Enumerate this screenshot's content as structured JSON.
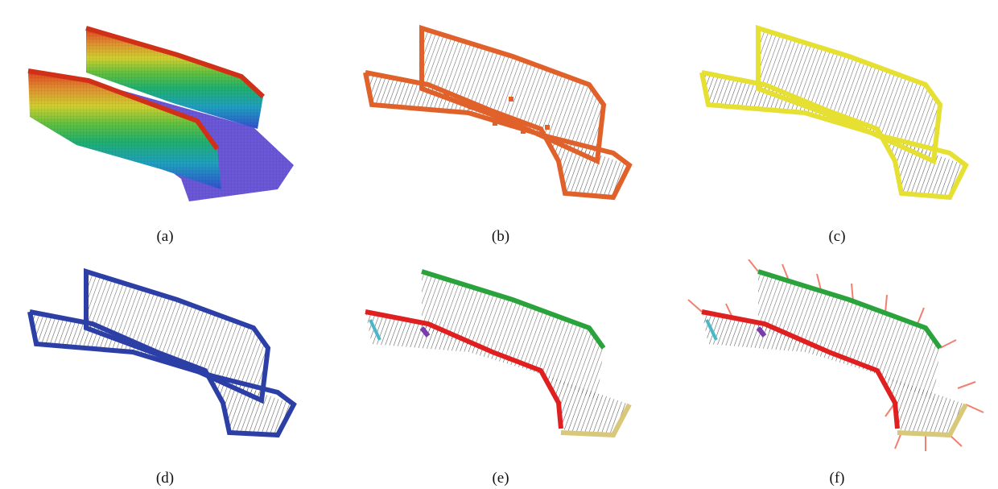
{
  "figure": {
    "panels": [
      {
        "id": "a",
        "caption": "(a)",
        "style": "rainbow-height-voxels"
      },
      {
        "id": "b",
        "caption": "(b)",
        "style": "boundary-highlight",
        "boundary_color": "#e0622a"
      },
      {
        "id": "c",
        "caption": "(c)",
        "style": "boundary-highlight",
        "boundary_color": "#e5e032"
      },
      {
        "id": "d",
        "caption": "(d)",
        "style": "boundary-highlight",
        "boundary_color": "#2c3fa6"
      },
      {
        "id": "e",
        "caption": "(e)",
        "style": "segmented-boundary",
        "segment_colors": [
          "#2aa33c",
          "#e02020",
          "#d8c87a",
          "#7a3ab0",
          "#48b8c8"
        ]
      },
      {
        "id": "f",
        "caption": "(f)",
        "style": "segmented-boundary-with-normals",
        "segment_colors": [
          "#2aa33c",
          "#e02020",
          "#d8c87a",
          "#7a3ab0",
          "#48b8c8"
        ],
        "normal_color": "#f08070"
      }
    ],
    "colors": {
      "voxel_floor": "#6a58d8",
      "wall_lines": "#3a3a3a",
      "rainbow": [
        "#3050d0",
        "#20a0c0",
        "#20b070",
        "#60c040",
        "#d0d030",
        "#e09030",
        "#e04020"
      ]
    }
  }
}
